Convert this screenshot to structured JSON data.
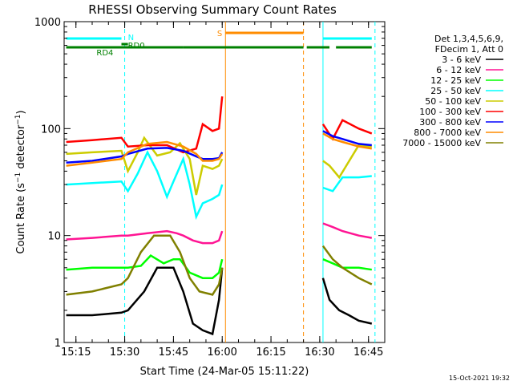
{
  "chart_data": {
    "type": "line",
    "title": "RHESSI Observing Summary Count Rates",
    "xlabel": "Start Time (24-Mar-05 15:11:22)",
    "ylabel": "Count Rate (s⁻¹ detector⁻¹)",
    "ylabel_main": "Count Rate (s",
    "ylabel_sup1": "−1",
    "ylabel_mid": " detector",
    "ylabel_sup2": "−1",
    "ylabel_end": ")",
    "yscale": "log",
    "ylim": [
      1,
      1000
    ],
    "xlim": [
      "15:11:22",
      "16:50:00"
    ],
    "x_ticks": [
      "15:15",
      "15:30",
      "15:45",
      "16:00",
      "16:15",
      "16:30",
      "16:45"
    ],
    "y_ticks": [
      "1",
      "10",
      "100",
      "1000"
    ],
    "legend_header": [
      "Det 1,3,4,5,6,9,",
      "FDecim 1, Att 0"
    ],
    "legend_placement": "right",
    "series": [
      {
        "name": "3 - 6 keV",
        "color": "#000000",
        "x": [
          "15:12",
          "15:20",
          "15:29",
          "15:31",
          "15:36",
          "15:40",
          "15:45",
          "15:48",
          "15:51",
          "15:54",
          "15:57",
          "15:59",
          "16:00",
          "16:31",
          "16:33",
          "16:36",
          "16:39",
          "16:42",
          "16:46"
        ],
        "y": [
          1.8,
          1.8,
          1.9,
          2,
          3,
          5,
          5,
          3,
          1.5,
          1.3,
          1.2,
          2.5,
          5,
          4,
          2.5,
          2,
          1.8,
          1.6,
          1.5
        ]
      },
      {
        "name": "6 - 12 keV",
        "color": "#ff1493",
        "x": [
          "15:12",
          "15:20",
          "15:29",
          "15:31",
          "15:37",
          "15:43",
          "15:46",
          "15:48",
          "15:51",
          "15:54",
          "15:57",
          "15:59",
          "16:00",
          "16:31",
          "16:34",
          "16:37",
          "16:42",
          "16:46"
        ],
        "y": [
          9.2,
          9.5,
          10,
          10,
          10.5,
          11,
          10.5,
          10,
          9,
          8.5,
          8.5,
          9,
          11,
          13,
          12,
          11,
          10,
          9.5
        ]
      },
      {
        "name": "12 - 25 keV",
        "color": "#00ff00",
        "x": [
          "15:12",
          "15:20",
          "15:29",
          "15:31",
          "15:35",
          "15:38",
          "15:42",
          "15:45",
          "15:47",
          "15:50",
          "15:54",
          "15:57",
          "15:59",
          "16:00",
          "16:31",
          "16:34",
          "16:37",
          "16:42",
          "16:46"
        ],
        "y": [
          4.8,
          5,
          5,
          5,
          5.2,
          6.5,
          5.5,
          6,
          6,
          4.5,
          4,
          4,
          4.5,
          6,
          6,
          5.5,
          5,
          5,
          4.8
        ]
      },
      {
        "name": "25 - 50 keV",
        "color": "#00ffff",
        "x": [
          "15:12",
          "15:20",
          "15:29",
          "15:31",
          "15:34",
          "15:37",
          "15:40",
          "15:43",
          "15:45",
          "15:48",
          "15:50",
          "15:52",
          "15:54",
          "15:57",
          "15:59",
          "16:00",
          "16:31",
          "16:34",
          "16:37",
          "16:42",
          "16:46"
        ],
        "y": [
          30,
          31,
          32,
          26,
          38,
          60,
          40,
          23,
          32,
          52,
          30,
          15,
          20,
          22,
          24,
          30,
          28,
          26,
          35,
          35,
          36
        ]
      },
      {
        "name": "50 - 100 keV",
        "color": "#cccc00",
        "x": [
          "15:12",
          "15:20",
          "15:29",
          "15:31",
          "15:34",
          "15:36",
          "15:40",
          "15:44",
          "15:47",
          "15:50",
          "15:52",
          "15:54",
          "15:57",
          "15:59",
          "16:00",
          "16:31",
          "16:33",
          "16:36",
          "16:42",
          "16:46"
        ],
        "y": [
          58,
          60,
          62,
          40,
          60,
          82,
          56,
          60,
          73,
          52,
          24,
          45,
          42,
          45,
          52,
          50,
          45,
          35,
          70,
          68
        ]
      },
      {
        "name": "100 - 300 keV",
        "color": "#ff0000",
        "x": [
          "15:12",
          "15:20",
          "15:29",
          "15:31",
          "15:37",
          "15:43",
          "15:48",
          "15:52",
          "15:54",
          "15:57",
          "15:59",
          "16:00",
          "16:31",
          "16:34",
          "16:37",
          "16:42",
          "16:46"
        ],
        "y": [
          75,
          78,
          82,
          68,
          70,
          70,
          60,
          65,
          110,
          95,
          100,
          200,
          110,
          80,
          120,
          100,
          90
        ]
      },
      {
        "name": "300 - 800 keV",
        "color": "#0000ff",
        "x": [
          "15:12",
          "15:20",
          "15:29",
          "15:31",
          "15:37",
          "15:43",
          "15:48",
          "15:52",
          "15:54",
          "15:57",
          "15:59",
          "16:00",
          "16:31",
          "16:34",
          "16:37",
          "16:42",
          "16:46"
        ],
        "y": [
          48,
          50,
          55,
          58,
          65,
          66,
          62,
          55,
          52,
          52,
          53,
          60,
          95,
          85,
          80,
          72,
          70
        ]
      },
      {
        "name": "800 - 7000 keV",
        "color": "#ff8c00",
        "x": [
          "15:12",
          "15:20",
          "15:29",
          "15:31",
          "15:37",
          "15:43",
          "15:48",
          "15:52",
          "15:54",
          "15:57",
          "15:59",
          "16:00",
          "16:31",
          "16:34",
          "16:37",
          "16:42",
          "16:46"
        ],
        "y": [
          45,
          48,
          52,
          60,
          72,
          75,
          68,
          58,
          50,
          50,
          52,
          58,
          90,
          80,
          75,
          68,
          65
        ]
      },
      {
        "name": "7000 - 15000 keV",
        "color": "#808000",
        "x": [
          "15:12",
          "15:20",
          "15:29",
          "15:31",
          "15:35",
          "15:39",
          "15:44",
          "15:47",
          "15:50",
          "15:53",
          "15:57",
          "15:59",
          "16:00",
          "16:31",
          "16:34",
          "16:37",
          "16:42",
          "16:46"
        ],
        "y": [
          2.8,
          3,
          3.5,
          4,
          7,
          10,
          10,
          7,
          4,
          3,
          2.8,
          3.5,
          5,
          8,
          6,
          5,
          4,
          3.5
        ]
      }
    ],
    "state_bars": [
      {
        "label": "N",
        "color": "#00ffff",
        "segments": [
          [
            "15:12",
            "15:29"
          ],
          [
            "16:31",
            "16:46"
          ]
        ]
      },
      {
        "label": "RD0",
        "color": "#008000",
        "segments": [
          [
            "15:29",
            "15:31"
          ]
        ]
      },
      {
        "label": "RD4",
        "color": "#008000",
        "segments": [
          [
            "15:12",
            "15:48"
          ],
          [
            "15:48",
            "16:25"
          ],
          [
            "16:26",
            "16:33"
          ],
          [
            "16:35",
            "16:46"
          ]
        ]
      },
      {
        "label": "S",
        "color": "#ff8c00",
        "segments": [
          [
            "16:01",
            "16:25"
          ]
        ]
      }
    ],
    "markers": [
      {
        "x": "15:30",
        "color": "#00ffff",
        "style": "dashed"
      },
      {
        "x": "16:31",
        "color": "#00ffff",
        "style": "solid"
      },
      {
        "x": "16:47",
        "color": "#00ffff",
        "style": "dashed"
      },
      {
        "x": "16:01",
        "color": "#ff8c00",
        "style": "solid"
      },
      {
        "x": "16:25",
        "color": "#ff8c00",
        "style": "dashed"
      }
    ],
    "timestamp": "15-Oct-2021 19:32"
  }
}
